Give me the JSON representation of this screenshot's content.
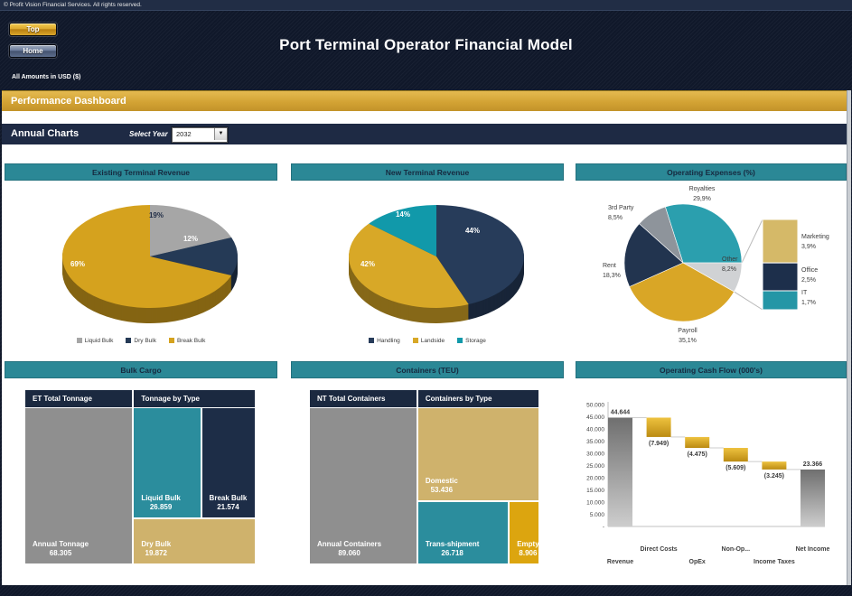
{
  "window": {
    "copyright": "© Profit Vision Financial Services. All rights reserved.",
    "title": "Port Terminal Operator Financial Model",
    "amounts_note": "All Amounts in  USD ($)",
    "banner_title": "Performance Dashboard",
    "nav": {
      "top_label": "Top",
      "home_label": "Home"
    },
    "toolbar": {
      "section": "Annual Charts",
      "select_year_label": "Select Year",
      "selected_year": "2032"
    }
  },
  "colors": {
    "accent_gold": "#d5a21e",
    "teal_header": "#2b8896",
    "navy": "#1e2a44",
    "tan": "#cfb26c",
    "gray": "#8f8f8f",
    "background_dark": "#10182a"
  },
  "chart_data": [
    {
      "id": "existing_revenue",
      "type": "pie",
      "style": "3d",
      "title": "Existing Terminal Revenue",
      "start_angle": 0,
      "legend_position": "bottom",
      "slices": [
        {
          "label": "Liquid Bulk",
          "value": 19,
          "display": "19%",
          "color": "#a6a6a6",
          "text_color": "#1f2c45"
        },
        {
          "label": "Dry Bulk",
          "value": 12,
          "display": "12%",
          "color": "#253a56",
          "text_color": "#ffffff"
        },
        {
          "label": "Break Bulk",
          "value": 69,
          "display": "69%",
          "color": "#d5a21e",
          "text_color": "#ffffff"
        }
      ]
    },
    {
      "id": "new_revenue",
      "type": "pie",
      "style": "3d",
      "title": "New Terminal Revenue",
      "start_angle": 0,
      "legend_position": "bottom",
      "slices": [
        {
          "label": "Handling",
          "value": 44,
          "display": "44%",
          "color": "#273c5a",
          "text_color": "#ffffff"
        },
        {
          "label": "Landside",
          "value": 42,
          "display": "42%",
          "color": "#d8a827",
          "text_color": "#ffffff"
        },
        {
          "label": "Storage",
          "value": 14,
          "display": "14%",
          "color": "#1199aa",
          "text_color": "#ffffff"
        }
      ]
    },
    {
      "id": "opex",
      "type": "pie-of-pie",
      "title": "Operating Expenses (%)",
      "start_angle": -17.6,
      "slices": [
        {
          "label": "Royalties",
          "value": 29.9,
          "display": "29,9%",
          "color": "#2b9fae"
        },
        {
          "label": "Other",
          "value": 8.2,
          "display": "8,2%",
          "color": "#d0d2d4"
        },
        {
          "label": "Payroll",
          "value": 35.1,
          "display": "35,1%",
          "color": "#d9a626"
        },
        {
          "label": "Rent",
          "value": 18.3,
          "display": "18,3%",
          "color": "#22344f"
        },
        {
          "label": "3rd Party",
          "value": 8.5,
          "display": "8,5%",
          "color": "#8e949b"
        }
      ],
      "breakdown": [
        {
          "label": "Marketing",
          "value": 3.9,
          "display": "3,9%",
          "color": "#d5b968"
        },
        {
          "label": "Office",
          "value": 2.5,
          "display": "2,5%",
          "color": "#1d2f4b"
        },
        {
          "label": "IT",
          "value": 1.7,
          "display": "1,7%",
          "color": "#2496a6"
        }
      ]
    },
    {
      "id": "bulk_cargo",
      "type": "treemap",
      "title": "Bulk Cargo",
      "arrangement": "pair-top",
      "groups": [
        {
          "header": "ET Total Tonnage",
          "cells": [
            {
              "label": "Annual Tonnage",
              "value": 68305,
              "display": "68.305",
              "color": "#8f8f8f"
            }
          ]
        },
        {
          "header": "Tonnage by Type",
          "cells": [
            {
              "label": "Liquid Bulk",
              "value": 26859,
              "display": "26.859",
              "color": "#2b8d9d"
            },
            {
              "label": "Break Bulk",
              "value": 21574,
              "display": "21.574",
              "color": "#1d2d47"
            },
            {
              "label": "Dry Bulk",
              "value": 19872,
              "display": "19.872",
              "color": "#cfb26c"
            }
          ]
        }
      ]
    },
    {
      "id": "containers",
      "type": "treemap",
      "title": "Containers (TEU)",
      "arrangement": "pair-bottom",
      "groups": [
        {
          "header": "NT Total Containers",
          "cells": [
            {
              "label": "Annual Containers",
              "value": 89060,
              "display": "89.060",
              "color": "#8f8f8f"
            }
          ]
        },
        {
          "header": "Containers by Type",
          "cells": [
            {
              "label": "Domestic",
              "value": 53436,
              "display": "53.436",
              "color": "#cfb26c"
            },
            {
              "label": "Trans-shipment",
              "value": 26718,
              "display": "26.718",
              "color": "#2b8d9d"
            },
            {
              "label": "Empty",
              "value": 8906,
              "display": "8.906",
              "color": "#dca50f"
            }
          ]
        }
      ]
    },
    {
      "id": "cash_flow",
      "type": "waterfall",
      "title": "Operating Cash Flow (000's)",
      "y_max": 50000,
      "y_step": 5000,
      "y_ticks": [
        "50.000",
        "45.000",
        "40.000",
        "35.000",
        "30.000",
        "25.000",
        "20.000",
        "15.000",
        "10.000",
        "5.000",
        "-"
      ],
      "bars": [
        {
          "label": "Revenue",
          "value": 44644,
          "display": "44.644",
          "kind": "total"
        },
        {
          "label": "Direct Costs",
          "value": -7949,
          "display": "(7.949)",
          "kind": "delta"
        },
        {
          "label": "OpEx",
          "value": -4475,
          "display": "(4.475)",
          "kind": "delta"
        },
        {
          "label": "Non-Op...",
          "value": -5609,
          "display": "(5.609)",
          "kind": "delta"
        },
        {
          "label": "Income Taxes",
          "value": -3245,
          "display": "(3.245)",
          "kind": "delta"
        },
        {
          "label": "Net Income",
          "value": 23366,
          "display": "23.366",
          "kind": "total"
        }
      ],
      "colors": {
        "total_top": "#6f6f6f",
        "total_bottom": "#cdcdcd",
        "delta_top": "#eec23f",
        "delta_bottom": "#bb8b12"
      }
    }
  ]
}
